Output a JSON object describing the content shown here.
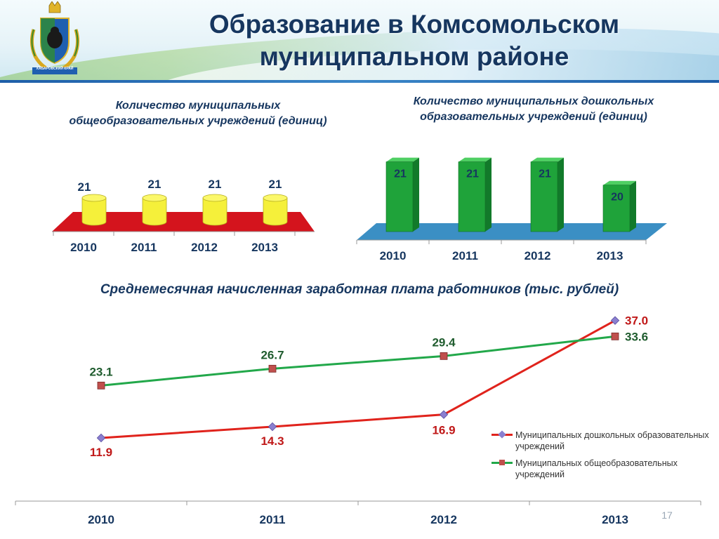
{
  "header": {
    "title_line1": "Образование в Комсомольском",
    "title_line2": "муниципальном районе",
    "emblem_caption": "ХАБАРОВСКИЙ КРАЙ"
  },
  "page_number": "17",
  "chart_data": [
    {
      "type": "bar",
      "style": "3d-cylinder",
      "title": "Количество муниципальных общеобразовательных учреждений (единиц)",
      "categories": [
        "2010",
        "2011",
        "2012",
        "2013"
      ],
      "values": [
        21,
        21,
        21,
        21
      ],
      "colors": {
        "bar": "#f5f03a",
        "floor": "#d4141d"
      }
    },
    {
      "type": "bar",
      "style": "3d-column",
      "title": "Количество муниципальных дошкольных образовательных учреждений (единиц)",
      "categories": [
        "2010",
        "2011",
        "2012",
        "2013"
      ],
      "values": [
        21,
        21,
        21,
        20
      ],
      "ylim": [
        18,
        21.5
      ],
      "colors": {
        "bar": "#1fa33a",
        "floor": "#3b8fc4"
      }
    },
    {
      "type": "line",
      "title": "Среднемесячная начисленная заработная плата работников (тыс. рублей)",
      "categories": [
        "2010",
        "2011",
        "2012",
        "2013"
      ],
      "series": [
        {
          "name": "Муниципальных дошкольных образовательных учреждений",
          "values": [
            11.9,
            14.3,
            16.9,
            37.0
          ],
          "color": "#e0231c",
          "label_color": "#c01818"
        },
        {
          "name": "Муниципальных общеобразовательных учреждений",
          "values": [
            23.1,
            26.7,
            29.4,
            33.6
          ],
          "color": "#22a84a",
          "label_color": "#1f5c2e"
        }
      ],
      "ylim": [
        8,
        38
      ],
      "legend_position": "right"
    }
  ]
}
